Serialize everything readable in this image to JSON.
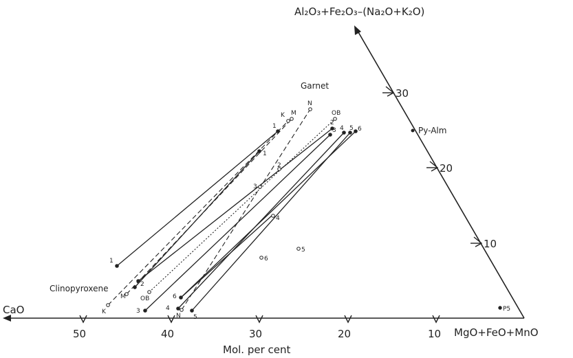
{
  "labels": {
    "top_vertex": "Al₂O₃+Fe₂O₃–(Na₂O+K₂O)",
    "left_vertex": "CaO",
    "right_vertex": "MgO+FeO+MnO",
    "axis_title": "Mol. per cent",
    "garnet": "Garnet",
    "clinopyroxene": "Clinopyroxene",
    "py_alm": "Py-Alm",
    "p5": "P5"
  },
  "bottom_ticks": [
    "50",
    "40",
    "30",
    "20",
    "10"
  ],
  "right_ticks": [
    "30",
    "20",
    "10"
  ],
  "tie_lines": [
    {
      "id": "1",
      "style": "solid",
      "cpx_label": "1",
      "grt_label": "1"
    },
    {
      "id": "1-inner",
      "style": "solid",
      "cpx_label": "",
      "grt_label": "1"
    },
    {
      "id": "2",
      "style": "solid",
      "cpx_label": "2",
      "grt_label": "2"
    },
    {
      "id": "3",
      "style": "solid",
      "cpx_label": "3",
      "grt_label": "3"
    },
    {
      "id": "4",
      "style": "solid",
      "cpx_label": "4",
      "grt_label": "4"
    },
    {
      "id": "5",
      "style": "solid",
      "cpx_label": "5",
      "grt_label": "5"
    },
    {
      "id": "6",
      "style": "solid",
      "cpx_label": "6",
      "grt_label": "6"
    },
    {
      "id": "K",
      "style": "dashed",
      "cpx_label": "K",
      "grt_label": "K"
    },
    {
      "id": "M",
      "style": "dashed",
      "cpx_label": "M",
      "grt_label": "M"
    },
    {
      "id": "N",
      "style": "dashed",
      "cpx_label": "N",
      "grt_label": "N"
    },
    {
      "id": "OB",
      "style": "dotted",
      "cpx_label": "OB",
      "grt_label": "OB"
    }
  ],
  "open_points": [
    {
      "label": "2"
    },
    {
      "label": "3"
    },
    {
      "label": "4"
    },
    {
      "label": "5"
    },
    {
      "label": "6"
    }
  ]
}
